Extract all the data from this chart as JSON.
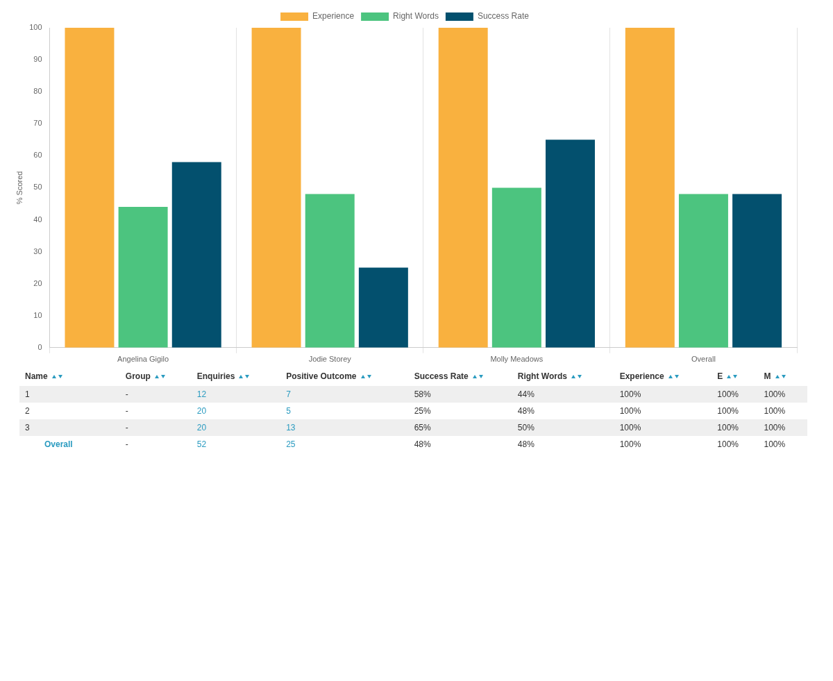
{
  "chart_data": {
    "type": "bar",
    "categories": [
      "Angelina Gigilo",
      "Jodie Storey",
      "Molly Meadows",
      "Overall"
    ],
    "ylabel": "% Scored",
    "ylim": [
      0,
      100
    ],
    "yticks": [
      0,
      10,
      20,
      30,
      40,
      50,
      60,
      70,
      80,
      90,
      100
    ],
    "grid": "x",
    "legend": "top",
    "series": [
      {
        "name": "Experience",
        "color": "#f9b13f",
        "values": [
          100,
          100,
          100,
          100
        ]
      },
      {
        "name": "Right Words",
        "color": "#4cc47f",
        "values": [
          44,
          48,
          50,
          48
        ]
      },
      {
        "name": "Success Rate",
        "color": "#03506e",
        "values": [
          58,
          25,
          65,
          48
        ]
      }
    ],
    "annotations": [
      "Name",
      "Group",
      "Enquiries",
      "Positive Outcome",
      "Success Rate",
      "Right Words",
      "Experience",
      "E",
      "M",
      "1",
      "-",
      "12",
      "7",
      "58%",
      "44%",
      "100%",
      "100%",
      "100%",
      "2",
      "-",
      "20",
      "5",
      "25%",
      "48%",
      "100%",
      "100%",
      "100%",
      "3",
      "-",
      "20",
      "13",
      "65%",
      "50%",
      "100%",
      "100%",
      "100%",
      "Overall",
      "-",
      "52",
      "25",
      "48%",
      "48%",
      "100%",
      "100%",
      "100%"
    ]
  }
}
